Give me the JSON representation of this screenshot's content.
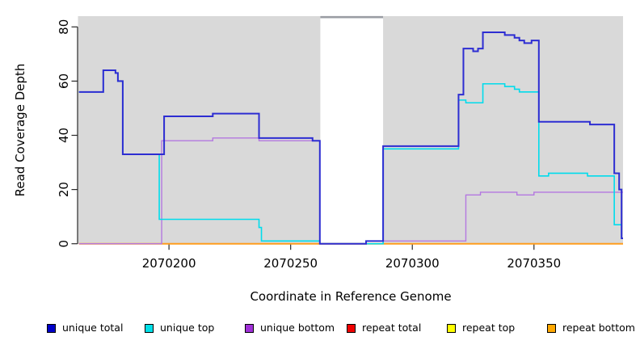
{
  "chart_data": {
    "type": "line",
    "step": true,
    "title": "",
    "xlabel": "Coordinate in Reference Genome",
    "ylabel": "Read Coverage Depth",
    "xlim": [
      2070162.6,
      2070386.6
    ],
    "ylim": [
      0,
      80
    ],
    "xticks": [
      2070200,
      2070250,
      2070300,
      2070350
    ],
    "yticks": [
      0,
      20,
      40,
      60,
      80
    ],
    "grid": false,
    "legend_position": "bottom",
    "shaded_regions": [
      {
        "x0": 2070162.6,
        "x1": 2070262.2,
        "color": "#d9d9d9"
      },
      {
        "x0": 2070288.0,
        "x1": 2070386.6,
        "color": "#d9d9d9"
      }
    ],
    "gap_top_band": {
      "x0": 2070262.2,
      "x1": 2070288.0,
      "color": "#9a9da3"
    },
    "series": [
      {
        "name": "repeat total",
        "color": "#e03030",
        "width": 1.4,
        "points": [
          [
            2070163,
            0
          ]
        ]
      },
      {
        "name": "repeat top",
        "color": "#ffff33",
        "width": 1.4,
        "points": [
          [
            2070163,
            0
          ]
        ]
      },
      {
        "name": "repeat bottom",
        "color": "#ff9d1e",
        "width": 2,
        "points": [
          [
            2070163,
            0
          ]
        ]
      },
      {
        "name": "unique bottom",
        "color": "#b478e0",
        "width": 1.4,
        "points": [
          [
            2070163,
            0
          ],
          [
            2070197,
            38
          ],
          [
            2070218,
            39
          ],
          [
            2070237,
            38
          ],
          [
            2070262,
            0
          ],
          [
            2070281,
            1
          ],
          [
            2070322,
            18
          ],
          [
            2070328,
            19
          ],
          [
            2070343,
            18
          ],
          [
            2070350,
            19
          ]
        ]
      },
      {
        "name": "unique top",
        "color": "#00dcec",
        "width": 1.6,
        "points": [
          [
            2070163,
            56
          ],
          [
            2070173,
            64
          ],
          [
            2070178,
            63
          ],
          [
            2070179,
            60
          ],
          [
            2070181,
            33
          ],
          [
            2070196,
            9
          ],
          [
            2070237,
            6
          ],
          [
            2070238,
            1
          ],
          [
            2070262,
            0
          ],
          [
            2070288,
            35
          ],
          [
            2070319,
            53
          ],
          [
            2070322,
            52
          ],
          [
            2070329,
            59
          ],
          [
            2070338,
            58
          ],
          [
            2070342,
            57
          ],
          [
            2070344,
            56
          ],
          [
            2070352,
            25
          ],
          [
            2070356,
            26
          ],
          [
            2070372,
            25
          ],
          [
            2070383,
            7
          ],
          [
            2070386,
            2
          ]
        ]
      },
      {
        "name": "unique total",
        "color": "#2d2dd2",
        "width": 2,
        "points": [
          [
            2070163,
            56
          ],
          [
            2070173,
            64
          ],
          [
            2070178,
            63
          ],
          [
            2070179,
            60
          ],
          [
            2070181,
            33
          ],
          [
            2070198,
            47
          ],
          [
            2070218,
            48
          ],
          [
            2070237,
            39
          ],
          [
            2070259,
            38
          ],
          [
            2070262,
            0
          ],
          [
            2070281,
            1
          ],
          [
            2070288,
            36
          ],
          [
            2070319,
            55
          ],
          [
            2070321,
            72
          ],
          [
            2070325,
            71
          ],
          [
            2070327,
            72
          ],
          [
            2070329,
            78
          ],
          [
            2070338,
            77
          ],
          [
            2070342,
            76
          ],
          [
            2070344,
            75
          ],
          [
            2070346,
            74
          ],
          [
            2070349,
            75
          ],
          [
            2070352,
            45
          ],
          [
            2070373,
            44
          ],
          [
            2070383,
            26
          ],
          [
            2070385,
            20
          ],
          [
            2070386,
            2
          ]
        ]
      }
    ],
    "legend": [
      {
        "label": "unique total",
        "color": "#0000c8"
      },
      {
        "label": "unique top",
        "color": "#00e0e8"
      },
      {
        "label": "unique bottom",
        "color": "#a030d8"
      },
      {
        "label": "repeat total",
        "color": "#f00000"
      },
      {
        "label": "repeat top",
        "color": "#ffff00"
      },
      {
        "label": "repeat bottom",
        "color": "#ffa800"
      }
    ]
  }
}
